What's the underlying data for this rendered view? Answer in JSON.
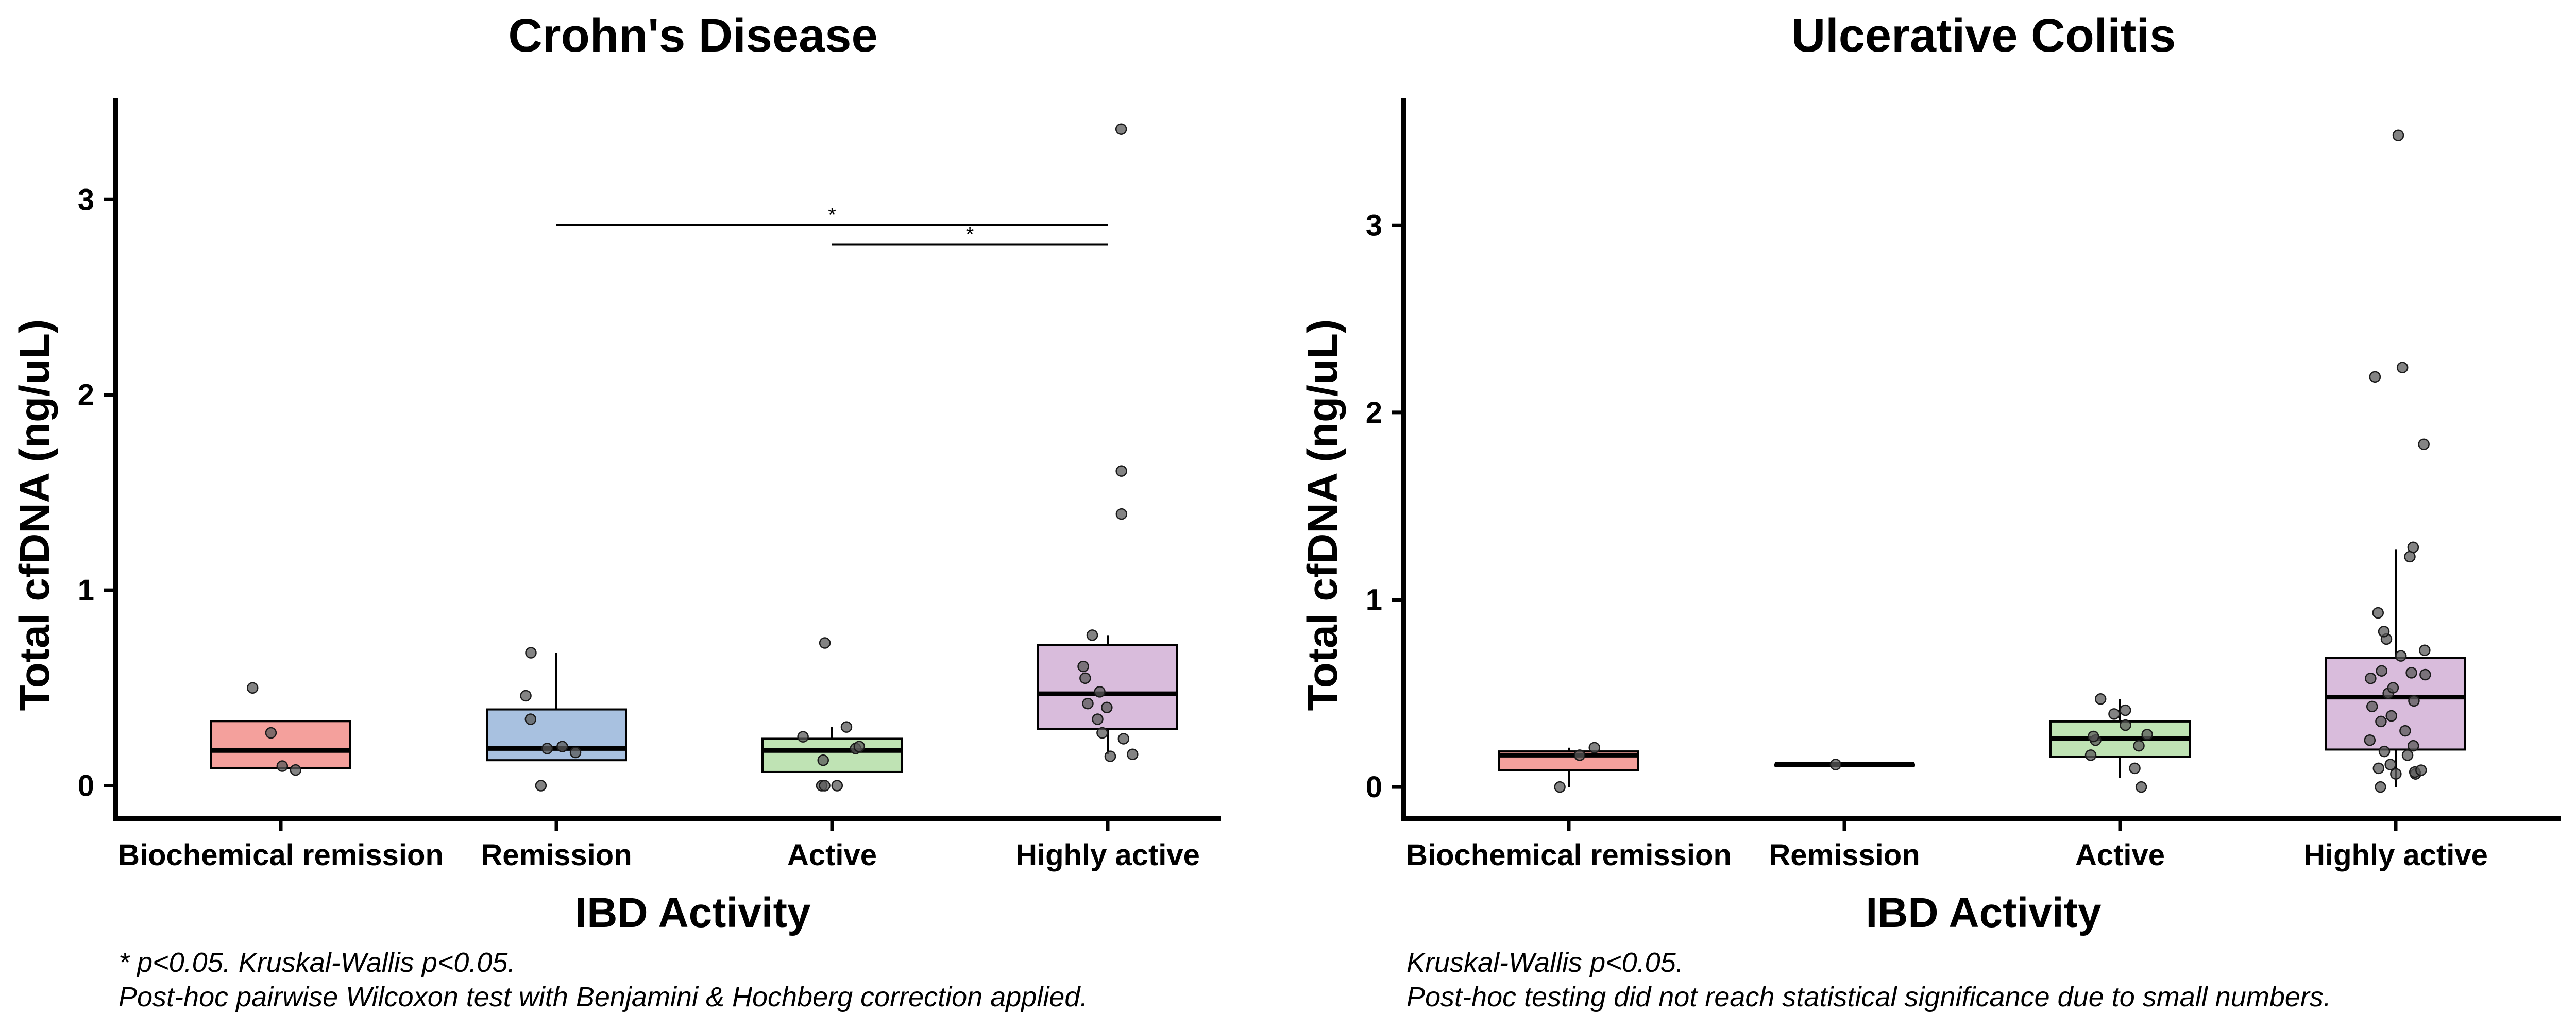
{
  "chart_data": [
    {
      "type": "box",
      "title": "Crohn's Disease",
      "xlabel": "IBD Activity",
      "ylabel": "Total cfDNA (ng/uL)",
      "ylim": [
        -0.17,
        3.52
      ],
      "yticks": [
        "0",
        "1",
        "2",
        "3"
      ],
      "categories": [
        "Biochemical remission",
        "Remission",
        "Active",
        "Highly active"
      ],
      "colors": [
        "#f4a09c",
        "#a8c1e0",
        "#bfe3b4",
        "#d9bcdc"
      ],
      "boxes": [
        {
          "q1": 0.09,
          "median": 0.18,
          "q3": 0.33,
          "lower": 0.09,
          "upper": 0.33
        },
        {
          "q1": 0.13,
          "median": 0.19,
          "q3": 0.39,
          "lower": 0.13,
          "upper": 0.68
        },
        {
          "q1": 0.07,
          "median": 0.18,
          "q3": 0.24,
          "lower": 0.07,
          "upper": 0.3
        },
        {
          "q1": 0.29,
          "median": 0.47,
          "q3": 0.72,
          "lower": 0.16,
          "upper": 0.77
        }
      ],
      "points": [
        [
          0.08,
          0.1,
          0.27,
          0.5
        ],
        [
          0.0,
          0.17,
          0.19,
          0.2,
          0.34,
          0.46,
          0.68
        ],
        [
          0.0,
          0.0,
          0.0,
          0.13,
          0.19,
          0.2,
          0.25,
          0.3,
          0.73
        ],
        [
          0.15,
          0.16,
          0.24,
          0.27,
          0.34,
          0.4,
          0.42,
          0.48,
          0.55,
          0.61,
          0.77,
          1.39,
          1.61,
          3.36
        ]
      ],
      "significance": [
        {
          "from": "Remission",
          "to": "Highly active",
          "y": 2.87,
          "label": "*"
        },
        {
          "from": "Active",
          "to": "Highly active",
          "y": 2.77,
          "label": "*"
        }
      ],
      "footnote": [
        "* p<0.05. Kruskal-Wallis p<0.05.",
        "Post-hoc pairwise Wilcoxon test with Benjamini & Hochberg correction applied."
      ]
    },
    {
      "type": "box",
      "title": "Ulcerative Colitis",
      "xlabel": "IBD Activity",
      "ylabel": "Total cfDNA (ng/uL)",
      "ylim": [
        -0.17,
        3.68
      ],
      "yticks": [
        "0",
        "1",
        "2",
        "3"
      ],
      "categories": [
        "Biochemical remission",
        "Remission",
        "Active",
        "Highly active"
      ],
      "colors": [
        "#f4a09c",
        "#a8c1e0",
        "#bfe3b4",
        "#d9bcdc"
      ],
      "boxes": [
        {
          "q1": 0.09,
          "median": 0.17,
          "q3": 0.19,
          "lower": 0.0,
          "upper": 0.21
        },
        {
          "q1": 0.12,
          "median": 0.12,
          "q3": 0.12,
          "lower": 0.12,
          "upper": 0.12
        },
        {
          "q1": 0.16,
          "median": 0.26,
          "q3": 0.35,
          "lower": 0.05,
          "upper": 0.47
        },
        {
          "q1": 0.2,
          "median": 0.48,
          "q3": 0.69,
          "lower": 0.0,
          "upper": 1.27
        }
      ],
      "points": [
        [
          0.0,
          0.17,
          0.21
        ],
        [
          0.12
        ],
        [
          0.0,
          0.1,
          0.17,
          0.22,
          0.25,
          0.27,
          0.28,
          0.33,
          0.39,
          0.41,
          0.47
        ],
        [
          0.0,
          0.07,
          0.07,
          0.08,
          0.09,
          0.1,
          0.12,
          0.17,
          0.19,
          0.22,
          0.25,
          0.3,
          0.35,
          0.38,
          0.43,
          0.46,
          0.5,
          0.53,
          0.58,
          0.6,
          0.61,
          0.62,
          0.7,
          0.73,
          0.79,
          0.83,
          0.93,
          1.23,
          1.28,
          1.83,
          2.19,
          2.24,
          3.48
        ]
      ],
      "significance": [],
      "footnote": [
        "Kruskal-Wallis p<0.05.",
        "Post-hoc testing did not reach statistical significance due to small numbers."
      ]
    }
  ]
}
